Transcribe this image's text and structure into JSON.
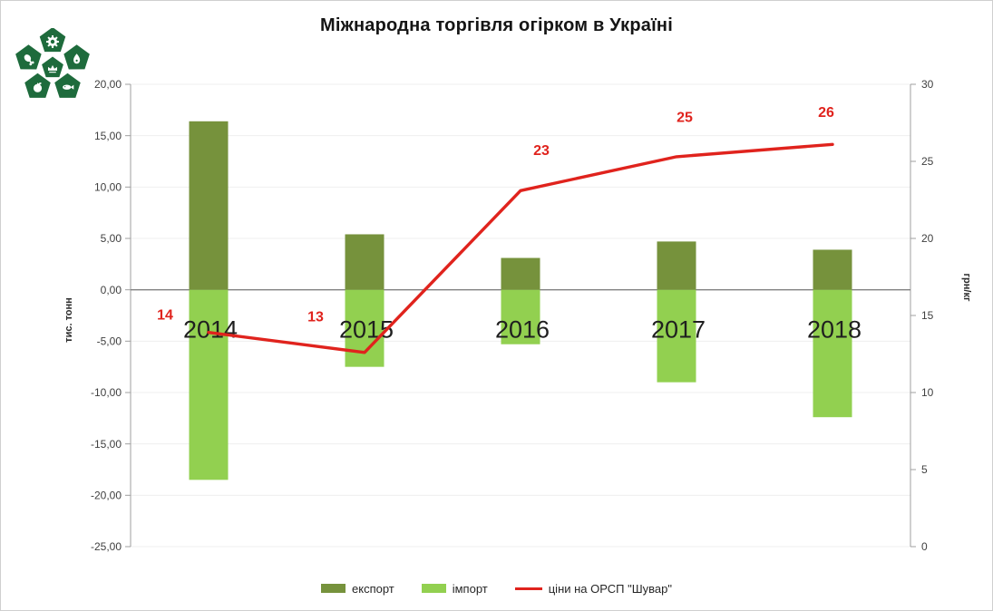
{
  "page": {
    "title": "Міжнародна торгівля огірком в Україні"
  },
  "logo": {
    "name": "shuvar-market-logo",
    "color": "#1e6b3c",
    "segments": [
      "gear-flower",
      "meat-drumstick",
      "pear-drop",
      "crown",
      "apple",
      "fish"
    ]
  },
  "chart_data": {
    "type": "combo",
    "title": "Міжнародна торгівля огірком в Україні",
    "categories": [
      "2014",
      "2015",
      "2016",
      "2017",
      "2018"
    ],
    "bar_series": [
      {
        "name": "експорт",
        "color": "#76923c",
        "values": [
          16.4,
          5.4,
          3.1,
          4.7,
          3.9
        ]
      },
      {
        "name": "імпорт",
        "color": "#92d050",
        "values": [
          -18.5,
          -7.5,
          -5.3,
          -9.0,
          -12.4
        ]
      }
    ],
    "line_series": {
      "name": "ціни на ОРСП \"Шувар\"",
      "color": "#e0231d",
      "axis": "right",
      "labels": [
        "14",
        "13",
        "23",
        "25",
        "26"
      ],
      "plot_values": [
        13.9,
        12.6,
        23.1,
        25.3,
        26.1
      ]
    },
    "left_axis": {
      "title": "тис. тонн",
      "min": -25,
      "max": 20,
      "step": 5,
      "tick_labels": [
        "20,00",
        "15,00",
        "10,00",
        "5,00",
        "0,00",
        "-5,00",
        "-10,00",
        "-15,00",
        "-20,00",
        "-25,00"
      ]
    },
    "right_axis": {
      "title": "грн/кг",
      "min": 0,
      "max": 30,
      "step": 5,
      "tick_labels": [
        "30",
        "25",
        "20",
        "15",
        "10",
        "5",
        "0"
      ]
    },
    "grid": true,
    "legend_position": "bottom",
    "colors": {
      "gridline": "#efefef",
      "zero_line": "#808080",
      "axis_line": "#9f9f9f",
      "tick_text": "#3f3f3f",
      "category_text": "#1f1f1f"
    }
  },
  "legend": {
    "items": [
      {
        "label": "експорт",
        "swatch": "bar",
        "color": "#76923c"
      },
      {
        "label": "імпорт",
        "swatch": "bar",
        "color": "#92d050"
      },
      {
        "label": "ціни на ОРСП \"Шувар\"",
        "swatch": "line",
        "color": "#e0231d"
      }
    ]
  }
}
